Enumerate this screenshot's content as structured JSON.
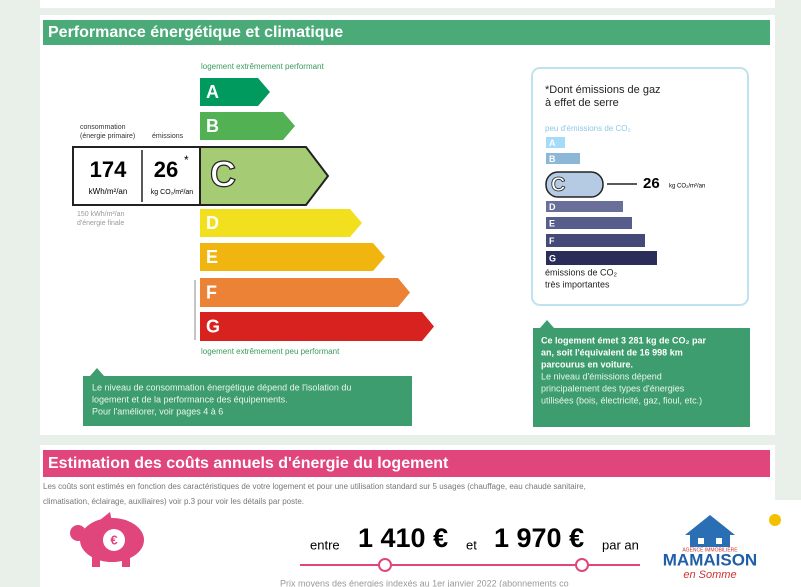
{
  "performance": {
    "title": "Performance énergétique et climatique",
    "top_label": "logement extrêmement performant",
    "bottom_label": "logement extrêmement peu performant",
    "consumption_label": [
      "consommation",
      "(énergie primaire)"
    ],
    "emissions_label": "émissions",
    "consumption_value": "174",
    "consumption_unit": "kWh/m²/an",
    "emissions_value": "26",
    "star": "*",
    "emissions_unit": "kg CO₂/m²/an",
    "final_energy": [
      "150 kWh/m²/an",
      "d'énergie finale"
    ],
    "grades": [
      "A",
      "B",
      "C",
      "D",
      "E",
      "F",
      "G"
    ],
    "note": [
      "Le niveau de consommation énergétique dépend de l'isolation du",
      "logement et de la performance des équipements.",
      "Pour l'améliorer, voir pages 4 à 6"
    ]
  },
  "ges": {
    "title": [
      "*Dont émissions de gaz",
      "à effet de serre"
    ],
    "top_label": "peu d'émissions de CO₂",
    "grades": [
      "A",
      "B",
      "C",
      "D",
      "E",
      "F",
      "G"
    ],
    "value": "26",
    "unit": "kg CO₂/m²/an",
    "bottom_label": [
      "émissions de CO₂",
      "très importantes"
    ],
    "note_bold": [
      "Ce logement émet 3 281 kg de CO₂ par",
      "an, soit l'équivalent de 16 998 km",
      "parcourus en voiture."
    ],
    "note": [
      "Le niveau d'émissions dépend",
      "principalement des types d'énergies",
      "utilisées (bois, électricité, gaz, fioul, etc.)"
    ]
  },
  "costs": {
    "title": "Estimation des coûts annuels d'énergie du logement",
    "description": [
      "Les coûts sont estimés en fonction des caractéristiques de votre logement et pour une utilisation standard sur 5 usages (chauffage, eau chaude sanitaire,",
      "climatisation, éclairage, auxiliaires) voir p.3 pour voir les détails par poste."
    ],
    "between": "entre",
    "low": "1 410 €",
    "and": "et",
    "high": "1 970 €",
    "per_year": "par an",
    "footer": "Prix moyens des énergies indexés au 1er janvier 2022 (abonnements co"
  },
  "logo": {
    "tag": "AGENCE IMMOBILIÈRE",
    "name": "MAMAISON",
    "sub": "en Somme"
  }
}
